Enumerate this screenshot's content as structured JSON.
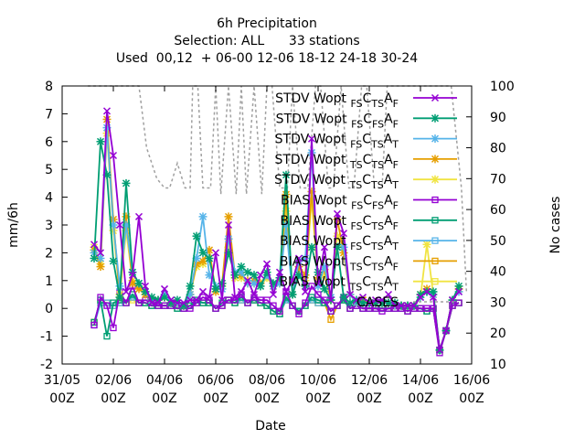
{
  "title": {
    "line1": "6h Precipitation",
    "line2": "Selection: ALL      33 stations",
    "line3": "Used  00,12  + 06-00 12-06 18-12 24-18 30-24"
  },
  "chart_data": {
    "type": "line",
    "xlabel": "Date",
    "ylabel": "mm/6h",
    "y2label": "No cases",
    "ylim": [
      -2,
      8
    ],
    "y2lim": [
      10,
      100
    ],
    "xlim": [
      "2022-05-31 00Z",
      "2022-06-16 00Z"
    ],
    "y_ticks": [
      "-2",
      "-1",
      "0",
      "1",
      "2",
      "3",
      "4",
      "5",
      "6",
      "7",
      "8"
    ],
    "y2_ticks": [
      "10",
      "20",
      "30",
      "40",
      "50",
      "60",
      "70",
      "80",
      "90",
      "100"
    ],
    "x_ticks": [
      {
        "l1": "31/05",
        "l2": "00Z"
      },
      {
        "l1": "02/06",
        "l2": "00Z"
      },
      {
        "l1": "04/06",
        "l2": "00Z"
      },
      {
        "l1": "06/06",
        "l2": "00Z"
      },
      {
        "l1": "08/06",
        "l2": "00Z"
      },
      {
        "l1": "10/06",
        "l2": "00Z"
      },
      {
        "l1": "12/06",
        "l2": "00Z"
      },
      {
        "l1": "14/06",
        "l2": "00Z"
      },
      {
        "l1": "16/06",
        "l2": "00Z"
      }
    ],
    "x_days": [
      1.25,
      1.5,
      1.75,
      2.0,
      2.25,
      2.5,
      2.75,
      3.0,
      3.25,
      3.5,
      3.75,
      4.0,
      4.25,
      4.5,
      4.75,
      5.0,
      5.25,
      5.5,
      5.75,
      6.0,
      6.25,
      6.5,
      6.75,
      7.0,
      7.25,
      7.5,
      7.75,
      8.0,
      8.25,
      8.5,
      8.75,
      9.0,
      9.25,
      9.5,
      9.75,
      10.0,
      10.25,
      10.5,
      10.75,
      11.0,
      11.25,
      11.5,
      11.75,
      12.0,
      12.25,
      12.5,
      12.75,
      13.0,
      13.25,
      13.5,
      13.75,
      14.0,
      14.25,
      14.5,
      14.75,
      15.0,
      15.25,
      15.5
    ],
    "legend_position": "top-right",
    "series": [
      {
        "name": "STDV Wopt FS C TS A F",
        "label": {
          "main": "STDV Wopt",
          "s1": "FS",
          "mid": "C",
          "s2": "TS",
          "end": "A",
          "s3": "F"
        },
        "color": "#9400d3",
        "kind": "stdv",
        "marker": "x",
        "values": [
          2.3,
          2.0,
          7.1,
          5.5,
          3.0,
          0.6,
          1.2,
          3.3,
          0.8,
          0.2,
          0.2,
          0.7,
          0.3,
          0.2,
          0.2,
          0.3,
          0.3,
          0.6,
          0.4,
          2.0,
          0.3,
          3.0,
          0.4,
          0.6,
          1.0,
          0.5,
          1.2,
          1.6,
          0.5,
          1.3,
          0.6,
          1.0,
          1.8,
          0.6,
          6.1,
          0.9,
          2.2,
          0.3,
          3.4,
          2.7,
          0.5,
          0.3,
          0.4,
          0.2,
          0.3,
          0.3,
          0.5,
          0.1,
          0.1,
          0.1,
          0.1,
          0.4,
          0.6,
          0.4,
          -1.5,
          -0.8,
          0.3,
          0.6
        ]
      },
      {
        "name": "STDV Wopt FS C FS A F",
        "label": {
          "main": "STDV Wopt",
          "s1": "FS",
          "mid": "C",
          "s2": "FS",
          "end": "A",
          "s3": "F"
        },
        "color": "#009e73",
        "kind": "stdv",
        "marker": "*",
        "values": [
          1.8,
          6.0,
          4.8,
          1.7,
          0.4,
          4.5,
          1.3,
          0.9,
          0.6,
          0.4,
          0.3,
          0.4,
          0.2,
          0.3,
          0.1,
          0.8,
          2.6,
          2.0,
          1.8,
          0.7,
          0.9,
          2.0,
          1.2,
          1.5,
          1.3,
          1.2,
          0.8,
          1.3,
          0.9,
          1.1,
          4.8,
          0.5,
          1.2,
          0.8,
          2.2,
          1.3,
          0.7,
          0.3,
          2.2,
          0.4,
          0.2,
          0.3,
          0.2,
          0.2,
          0.2,
          0.2,
          0.2,
          0.2,
          0.1,
          0.1,
          0.1,
          0.5,
          0.6,
          0.6,
          -1.5,
          -0.8,
          0.3,
          0.8
        ]
      },
      {
        "name": "STDV Wopt FS C TS A T",
        "label": {
          "main": "STDV Wopt",
          "s1": "FS",
          "mid": "C",
          "s2": "TS",
          "end": "A",
          "s3": "T"
        },
        "color": "#56b4e9",
        "kind": "stdv",
        "marker": "*",
        "values": [
          2.0,
          1.8,
          6.5,
          3.0,
          0.8,
          3.0,
          1.3,
          0.9,
          0.6,
          0.3,
          0.3,
          0.5,
          0.2,
          0.2,
          0.1,
          0.5,
          1.8,
          3.3,
          1.2,
          0.8,
          0.7,
          2.5,
          1.3,
          1.3,
          0.9,
          0.9,
          0.8,
          1.2,
          0.8,
          0.9,
          3.0,
          0.5,
          1.7,
          1.8,
          5.6,
          0.8,
          1.5,
          0.4,
          2.2,
          2.2,
          0.5,
          0.2,
          0.2,
          0.2,
          0.2,
          0.2,
          0.2,
          0.1,
          0.1,
          0.1,
          0.1,
          0.4,
          0.6,
          0.5,
          -1.5,
          -0.8,
          0.3,
          0.6
        ]
      },
      {
        "name": "STDV Wopt TS C TS A F",
        "label": {
          "main": "STDV Wopt",
          "s1": "TS",
          "mid": "C",
          "s2": "TS",
          "end": "A",
          "s3": "F"
        },
        "color": "#e69f00",
        "kind": "stdv",
        "marker": "*",
        "values": [
          2.1,
          1.5,
          6.8,
          3.2,
          0.4,
          3.3,
          0.9,
          0.7,
          0.5,
          0.3,
          0.3,
          0.4,
          0.2,
          0.2,
          0.1,
          0.5,
          1.6,
          1.7,
          2.1,
          0.6,
          0.9,
          3.3,
          1.2,
          1.2,
          1.0,
          1.0,
          0.9,
          1.2,
          0.8,
          1.0,
          4.1,
          0.5,
          1.5,
          1.2,
          4.2,
          1.1,
          1.4,
          0.3,
          3.2,
          2.0,
          0.5,
          0.2,
          0.3,
          0.2,
          0.2,
          0.2,
          0.2,
          0.1,
          0.1,
          0.1,
          0.1,
          0.5,
          0.7,
          0.5,
          -1.5,
          -0.8,
          0.3,
          0.7
        ]
      },
      {
        "name": "STDV Wopt TS C TS A T",
        "label": {
          "main": "STDV Wopt",
          "s1": "TS",
          "mid": "C",
          "s2": "TS",
          "end": "A",
          "s3": "T"
        },
        "color": "#f0e442",
        "kind": "stdv",
        "marker": "*",
        "values": [
          2.2,
          1.6,
          6.3,
          2.8,
          0.5,
          2.8,
          1.0,
          0.8,
          0.5,
          0.3,
          0.3,
          0.4,
          0.2,
          0.2,
          0.1,
          0.5,
          1.5,
          1.6,
          1.8,
          0.7,
          0.8,
          2.2,
          1.1,
          1.1,
          0.9,
          0.9,
          0.8,
          1.1,
          0.8,
          0.9,
          3.5,
          0.5,
          1.4,
          1.0,
          3.9,
          1.0,
          1.2,
          0.3,
          2.6,
          2.0,
          0.5,
          0.2,
          0.3,
          0.2,
          0.2,
          0.2,
          0.2,
          0.1,
          0.1,
          0.1,
          0.1,
          0.4,
          2.3,
          0.5,
          -1.5,
          -0.8,
          0.3,
          0.7
        ]
      },
      {
        "name": "BIAS Wopt FS C FS A F",
        "label": {
          "main": "BIAS Wopt",
          "s1": "FS",
          "mid": "C",
          "s2": "FS",
          "end": "A",
          "s3": "F"
        },
        "color": "#9400d3",
        "kind": "bias",
        "marker": "s",
        "values": [
          -0.6,
          0.4,
          0.1,
          -0.7,
          0.6,
          0.2,
          0.8,
          0.2,
          0.3,
          0.2,
          0.1,
          0.1,
          0.1,
          0.1,
          0.0,
          0.0,
          0.2,
          0.4,
          0.3,
          0.0,
          0.1,
          0.3,
          0.3,
          0.5,
          0.2,
          0.4,
          0.3,
          0.3,
          0.1,
          -0.1,
          0.6,
          0.1,
          -0.2,
          0.2,
          0.8,
          0.5,
          0.3,
          -0.1,
          0.1,
          0.4,
          0.0,
          0.1,
          0.0,
          0.0,
          0.0,
          -0.1,
          0.0,
          0.0,
          0.0,
          -0.1,
          0.0,
          0.0,
          0.0,
          0.0,
          -1.6,
          -0.8,
          0.1,
          0.2
        ]
      },
      {
        "name": "BIAS Wopt FS C TS A F",
        "label": {
          "main": "BIAS Wopt",
          "s1": "FS",
          "mid": "C",
          "s2": "TS",
          "end": "A",
          "s3": "F"
        },
        "color": "#009e73",
        "kind": "bias",
        "marker": "s",
        "values": [
          -0.5,
          0.3,
          -1.0,
          0.2,
          0.3,
          0.2,
          0.5,
          0.2,
          0.2,
          0.1,
          0.1,
          0.1,
          0.1,
          0.0,
          0.0,
          0.1,
          0.3,
          0.2,
          0.2,
          0.0,
          0.2,
          0.3,
          0.2,
          0.4,
          0.2,
          0.3,
          0.2,
          0.1,
          -0.1,
          -0.2,
          0.4,
          0.1,
          -0.1,
          0.1,
          0.4,
          0.3,
          0.2,
          -0.1,
          0.1,
          0.3,
          0.0,
          0.1,
          0.0,
          0.0,
          0.0,
          0.0,
          0.0,
          0.0,
          0.0,
          -0.1,
          0.0,
          0.0,
          -0.1,
          0.0,
          -1.5,
          -0.8,
          0.1,
          0.2
        ]
      },
      {
        "name": "BIAS Wopt FS C TS A T",
        "label": {
          "main": "BIAS Wopt",
          "s1": "FS",
          "mid": "C",
          "s2": "TS",
          "end": "A",
          "s3": "T"
        },
        "color": "#56b4e9",
        "kind": "bias",
        "marker": "s",
        "values": [
          -0.6,
          0.2,
          0.2,
          0.1,
          0.2,
          0.2,
          0.4,
          0.2,
          0.2,
          0.1,
          0.1,
          0.1,
          0.1,
          0.0,
          0.0,
          0.1,
          0.2,
          0.2,
          0.2,
          0.0,
          0.1,
          0.3,
          0.2,
          0.3,
          0.2,
          0.3,
          0.2,
          0.1,
          -0.1,
          -0.2,
          0.3,
          0.1,
          -0.1,
          0.1,
          0.3,
          0.2,
          0.2,
          -0.1,
          0.1,
          0.3,
          0.0,
          0.1,
          0.0,
          0.0,
          0.0,
          0.0,
          0.0,
          0.0,
          0.0,
          -0.1,
          0.0,
          0.0,
          -0.1,
          0.0,
          -1.5,
          -0.8,
          0.1,
          0.2
        ]
      },
      {
        "name": "BIAS Wopt TS C TS A F",
        "label": {
          "main": "BIAS Wopt",
          "s1": "TS",
          "mid": "C",
          "s2": "TS",
          "end": "A",
          "s3": "F"
        },
        "color": "#e69f00",
        "kind": "bias",
        "marker": "s",
        "values": [
          -0.5,
          0.2,
          0.2,
          0.1,
          0.2,
          0.2,
          0.4,
          0.2,
          0.2,
          0.1,
          0.1,
          0.1,
          0.1,
          0.0,
          0.0,
          0.1,
          0.2,
          0.2,
          0.2,
          0.0,
          0.1,
          0.3,
          0.2,
          0.3,
          0.2,
          0.3,
          0.2,
          0.1,
          -0.1,
          -0.2,
          0.3,
          0.1,
          -0.1,
          0.1,
          0.3,
          0.2,
          0.2,
          -0.4,
          0.1,
          0.3,
          0.0,
          0.1,
          0.0,
          0.0,
          0.0,
          0.0,
          0.0,
          0.0,
          0.0,
          -0.1,
          0.0,
          0.0,
          -0.1,
          0.0,
          -1.5,
          -0.8,
          0.1,
          0.2
        ]
      },
      {
        "name": "BIAS Wopt TS C TS A T",
        "label": {
          "main": "BIAS Wopt",
          "s1": "TS",
          "mid": "C",
          "s2": "TS",
          "end": "A",
          "s3": "T"
        },
        "color": "#f0e442",
        "kind": "bias",
        "marker": "s",
        "values": [
          -0.5,
          0.2,
          0.2,
          0.1,
          0.2,
          0.2,
          0.3,
          0.2,
          0.2,
          0.1,
          0.1,
          0.1,
          0.1,
          0.0,
          0.0,
          0.1,
          0.2,
          0.2,
          0.2,
          0.0,
          0.1,
          0.3,
          0.2,
          0.3,
          0.2,
          0.3,
          0.2,
          0.1,
          -0.1,
          -0.2,
          0.3,
          0.1,
          -0.1,
          0.1,
          0.3,
          0.2,
          0.2,
          -0.1,
          0.1,
          0.3,
          0.0,
          0.1,
          0.0,
          0.0,
          0.0,
          0.0,
          0.0,
          0.0,
          0.0,
          -0.1,
          0.0,
          0.0,
          -0.1,
          0.0,
          -1.5,
          -0.8,
          0.1,
          0.2
        ]
      }
    ],
    "cases": {
      "name": "CASES",
      "color": "#a0a0a0",
      "axis": "y2",
      "x_days": [
        1.0,
        3.0,
        3.3,
        3.7,
        4.0,
        4.2,
        4.5,
        4.8,
        5.0,
        5.1,
        5.3,
        5.5,
        5.8,
        6.0,
        6.2,
        6.5,
        6.8,
        7.0,
        7.2,
        7.5,
        7.8,
        8.0,
        8.2,
        8.5,
        8.8,
        9.0,
        9.3,
        9.6,
        9.9,
        10.1,
        10.4,
        10.6,
        10.9,
        11.2,
        11.4,
        11.7,
        11.9,
        12.2,
        12.5,
        12.7,
        13.0,
        13.4,
        13.7,
        14.0,
        14.4,
        14.8,
        15.2,
        15.6,
        15.8
      ],
      "values": [
        100,
        100,
        80,
        70,
        67,
        67,
        75,
        67,
        67,
        100,
        100,
        67,
        67,
        100,
        65,
        100,
        65,
        100,
        65,
        100,
        65,
        100,
        100,
        67,
        67,
        100,
        67,
        67,
        100,
        100,
        67,
        67,
        100,
        67,
        67,
        100,
        100,
        67,
        67,
        100,
        100,
        100,
        100,
        100,
        100,
        100,
        100,
        67,
        33
      ]
    }
  }
}
